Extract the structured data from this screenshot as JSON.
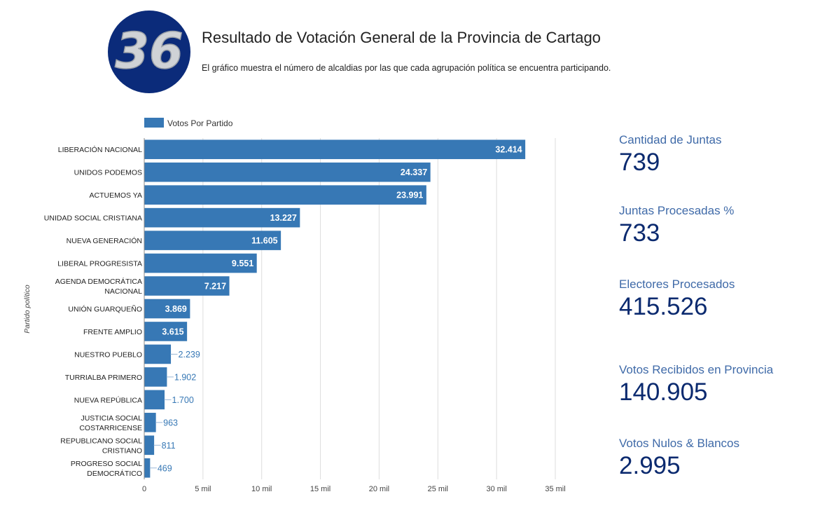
{
  "header": {
    "logo_text": "36",
    "title": "Resultado de Votación General de la Provincia de Cartago",
    "subtitle": "El gráfico muestra el número de alcaldias por las que cada agrupación política se encuentra participando."
  },
  "colors": {
    "bar": "#3778b5",
    "logo_bg": "#0b2b7a",
    "stat_label": "#3f6aa8",
    "stat_value": "#0b2a6f",
    "grid": "#dddddd"
  },
  "chart_data": {
    "type": "bar",
    "orientation": "horizontal",
    "title": "",
    "xlabel": "",
    "ylabel": "Partido político",
    "legend": {
      "position": "top-left",
      "entries": [
        "Votos Por Partido"
      ]
    },
    "grid": true,
    "xlim": [
      0,
      35000
    ],
    "xticks": [
      0,
      5000,
      10000,
      15000,
      20000,
      25000,
      30000,
      35000
    ],
    "xtick_labels": [
      "0",
      "5 mil",
      "10 mil",
      "15 mil",
      "20 mil",
      "25 mil",
      "30 mil",
      "35 mil"
    ],
    "categories": [
      "LIBERACIÓN NACIONAL",
      "UNIDOS PODEMOS",
      "ACTUEMOS YA",
      "UNIDAD SOCIAL CRISTIANA",
      "NUEVA GENERACIÓN",
      "LIBERAL PROGRESISTA",
      "AGENDA DEMOCRÁTICA NACIONAL",
      "UNIÓN GUARQUEÑO",
      "FRENTE AMPLIO",
      "NUESTRO PUEBLO",
      "TURRIALBA PRIMERO",
      "NUEVA REPÚBLICA",
      "JUSTICIA SOCIAL COSTARRICENSE",
      "REPUBLICANO SOCIAL CRISTIANO",
      "PROGRESO SOCIAL DEMOCRÁTICO"
    ],
    "category_lines": [
      [
        "LIBERACIÓN NACIONAL"
      ],
      [
        "UNIDOS PODEMOS"
      ],
      [
        "ACTUEMOS YA"
      ],
      [
        "UNIDAD SOCIAL CRISTIANA"
      ],
      [
        "NUEVA GENERACIÓN"
      ],
      [
        "LIBERAL PROGRESISTA"
      ],
      [
        "AGENDA DEMOCRÁTICA",
        "NACIONAL"
      ],
      [
        "UNIÓN GUARQUEÑO"
      ],
      [
        "FRENTE AMPLIO"
      ],
      [
        "NUESTRO PUEBLO"
      ],
      [
        "TURRIALBA PRIMERO"
      ],
      [
        "NUEVA REPÚBLICA"
      ],
      [
        "JUSTICIA SOCIAL",
        "COSTARRICENSE"
      ],
      [
        "REPUBLICANO SOCIAL",
        "CRISTIANO"
      ],
      [
        "PROGRESO SOCIAL",
        "DEMOCRÁTICO"
      ]
    ],
    "series": [
      {
        "name": "Votos Por Partido",
        "values": [
          32414,
          24337,
          23991,
          13227,
          11605,
          9551,
          7217,
          3869,
          3615,
          2239,
          1902,
          1700,
          963,
          811,
          469
        ],
        "value_labels": [
          "32.414",
          "24.337",
          "23.991",
          "13.227",
          "11.605",
          "9.551",
          "7.217",
          "3.869",
          "3.615",
          "2.239",
          "1.902",
          "1.700",
          "963",
          "811",
          "469"
        ]
      }
    ]
  },
  "stats": [
    {
      "label": "Cantidad de Juntas",
      "value": "739"
    },
    {
      "label": "Juntas Procesadas %",
      "value": "733"
    },
    {
      "label": "Electores Procesados",
      "value": "415.526"
    },
    {
      "label": "Votos Recibidos en Provincia",
      "value": "140.905"
    },
    {
      "label": "Votos Nulos & Blancos",
      "value": "2.995"
    }
  ]
}
